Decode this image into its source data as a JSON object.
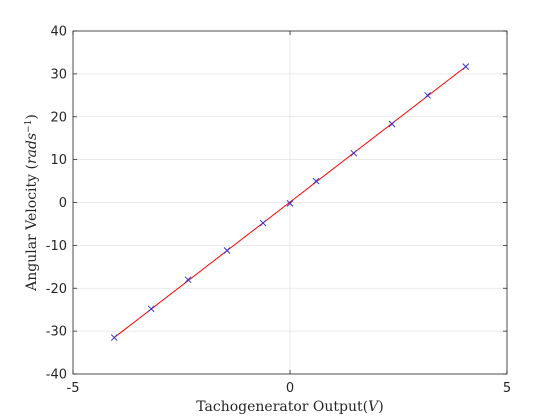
{
  "chart_data": {
    "type": "scatter",
    "title": "",
    "xlabel": "Tachogenerator Output($V$)",
    "ylabel": "Angular Velocity ($rads^{-1}$)",
    "xlabel_parts": {
      "text": "Tachogenerator Output(",
      "math": "V",
      "close": ")"
    },
    "ylabel_parts": {
      "text": "Angular Velocity (",
      "math": "rads",
      "sup": "−1",
      "close": ")"
    },
    "xlim": [
      -5,
      5
    ],
    "ylim": [
      -40,
      40
    ],
    "xticks": [
      -5,
      0,
      5
    ],
    "yticks": [
      -40,
      -30,
      -20,
      -10,
      0,
      10,
      20,
      30,
      40
    ],
    "grid": true,
    "legend": "none",
    "series": [
      {
        "style": "markers",
        "marker": "x",
        "color": "#3333cc",
        "x": [
          -4.05,
          -3.2,
          -2.35,
          -1.45,
          -0.62,
          0.0,
          0.6,
          1.47,
          2.35,
          3.17,
          4.05
        ],
        "y": [
          -31.5,
          -24.8,
          -18.0,
          -11.2,
          -4.8,
          -0.2,
          5.0,
          11.5,
          18.3,
          25.0,
          31.7
        ]
      },
      {
        "style": "line",
        "color": "#ff0000",
        "x": [
          -4.05,
          4.05
        ],
        "y": [
          -31.5,
          31.7
        ]
      }
    ]
  }
}
